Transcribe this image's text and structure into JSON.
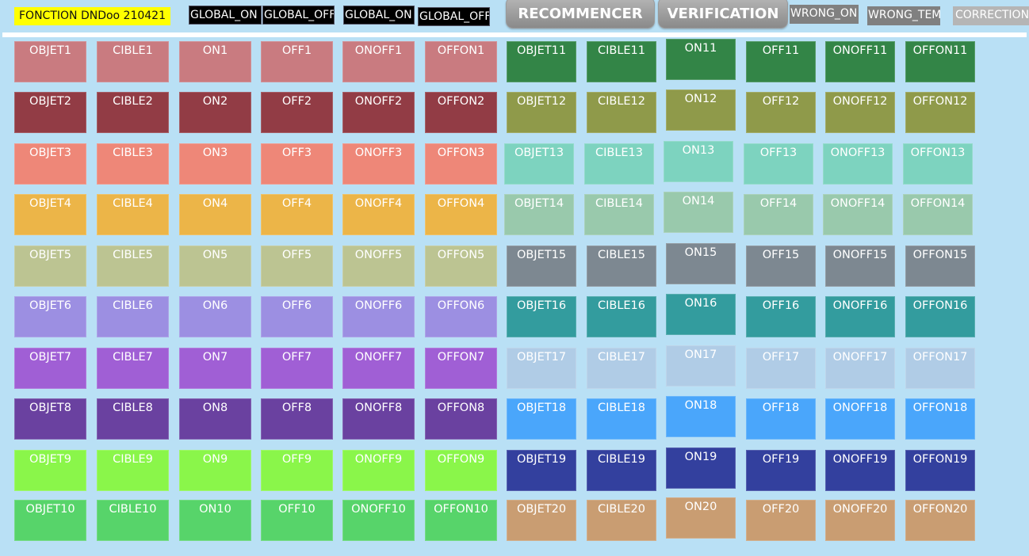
{
  "header": {
    "title": "FONCTION DNDoo 210421",
    "global_on_1": "GLOBAL_ON",
    "global_off_1": "GLOBAL_OFF",
    "global_on_2": "GLOBAL_ON",
    "global_off_2": "GLOBAL_OFF",
    "restart_label": "RECOMMENCER",
    "verify_label": "VERIFICATION",
    "wrong_on": "WRONG_ON",
    "wrong_tem": "WRONG_TEM",
    "correction": "CORRECTION"
  },
  "columns": [
    "OBJET",
    "CIBLE",
    "ON",
    "OFF",
    "ONOFF",
    "OFFON"
  ],
  "groups": [
    {
      "n": 1,
      "color": "#c97b80"
    },
    {
      "n": 2,
      "color": "#923c45"
    },
    {
      "n": 3,
      "color": "#ee8778"
    },
    {
      "n": 4,
      "color": "#ecb548"
    },
    {
      "n": 5,
      "color": "#bcc492"
    },
    {
      "n": 6,
      "color": "#9c8fe2"
    },
    {
      "n": 7,
      "color": "#a05fd5"
    },
    {
      "n": 8,
      "color": "#6a41a0"
    },
    {
      "n": 9,
      "color": "#8af64a"
    },
    {
      "n": 10,
      "color": "#57d46a"
    },
    {
      "n": 11,
      "color": "#338547"
    },
    {
      "n": 12,
      "color": "#8f9a4a"
    },
    {
      "n": 13,
      "color": "#7dd3bf"
    },
    {
      "n": 14,
      "color": "#99c9ac"
    },
    {
      "n": 15,
      "color": "#7d8891"
    },
    {
      "n": 16,
      "color": "#339c9e"
    },
    {
      "n": 17,
      "color": "#b0cce6"
    },
    {
      "n": 18,
      "color": "#4aa6fb"
    },
    {
      "n": 19,
      "color": "#33409e"
    },
    {
      "n": 20,
      "color": "#c99d72"
    }
  ],
  "labels": {}
}
